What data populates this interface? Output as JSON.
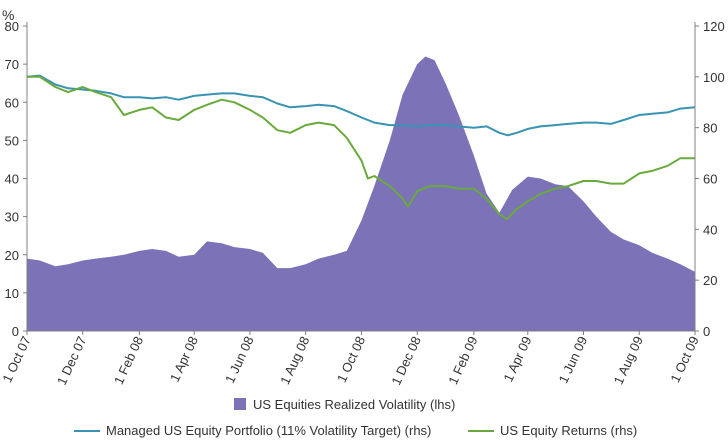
{
  "chart_data": {
    "type": "area",
    "y_left_unit": "%",
    "y_left_lim": [
      0,
      80
    ],
    "y_left_ticks": [
      "0",
      "10",
      "20",
      "30",
      "40",
      "50",
      "60",
      "70",
      "80"
    ],
    "y_right_lim": [
      0,
      120
    ],
    "y_right_ticks": [
      "0",
      "20",
      "40",
      "60",
      "80",
      "100",
      "120"
    ],
    "x_lim": [
      "2007-10-01",
      "2009-10-01"
    ],
    "x_ticks": [
      {
        "date": "2007-10-01",
        "label": "1 Oct 07"
      },
      {
        "date": "2007-12-01",
        "label": "1 Dec 07"
      },
      {
        "date": "2008-02-01",
        "label": "1 Feb 08"
      },
      {
        "date": "2008-04-01",
        "label": "1 Apr 08"
      },
      {
        "date": "2008-06-01",
        "label": "1 Jun 08"
      },
      {
        "date": "2008-08-01",
        "label": "1 Aug 08"
      },
      {
        "date": "2008-10-01",
        "label": "1 Oct 08"
      },
      {
        "date": "2008-12-01",
        "label": "1 Dec 08"
      },
      {
        "date": "2009-02-01",
        "label": "1 Feb 09"
      },
      {
        "date": "2009-04-01",
        "label": "1 Apr 09"
      },
      {
        "date": "2009-06-01",
        "label": "1 Jun 09"
      },
      {
        "date": "2009-08-01",
        "label": "1 Aug 09"
      },
      {
        "date": "2009-10-01",
        "label": "1 Oct 09"
      }
    ],
    "legend_placement": "bottom",
    "series": [
      {
        "name": "US Equities Realized Volatility (lhs)",
        "kind": "area",
        "axis": "left",
        "color": "#7b72b8",
        "points": [
          [
            "2007-10-01",
            19
          ],
          [
            "2007-10-15",
            18.5
          ],
          [
            "2007-11-01",
            17
          ],
          [
            "2007-11-15",
            17.5
          ],
          [
            "2007-12-01",
            18.5
          ],
          [
            "2007-12-15",
            19
          ],
          [
            "2008-01-01",
            19.5
          ],
          [
            "2008-01-15",
            20
          ],
          [
            "2008-02-01",
            21
          ],
          [
            "2008-02-15",
            21.5
          ],
          [
            "2008-03-01",
            21
          ],
          [
            "2008-03-15",
            19.5
          ],
          [
            "2008-04-01",
            20
          ],
          [
            "2008-04-15",
            23.5
          ],
          [
            "2008-05-01",
            23
          ],
          [
            "2008-05-15",
            22
          ],
          [
            "2008-06-01",
            21.5
          ],
          [
            "2008-06-15",
            20.5
          ],
          [
            "2008-07-01",
            16.5
          ],
          [
            "2008-07-15",
            16.5
          ],
          [
            "2008-08-01",
            17.5
          ],
          [
            "2008-08-15",
            19
          ],
          [
            "2008-09-01",
            20
          ],
          [
            "2008-09-15",
            21
          ],
          [
            "2008-10-01",
            29
          ],
          [
            "2008-10-15",
            38
          ],
          [
            "2008-11-01",
            50
          ],
          [
            "2008-11-15",
            62
          ],
          [
            "2008-12-01",
            70
          ],
          [
            "2008-12-10",
            72
          ],
          [
            "2008-12-20",
            71
          ],
          [
            "2009-01-01",
            65
          ],
          [
            "2009-01-15",
            57
          ],
          [
            "2009-02-01",
            46
          ],
          [
            "2009-02-15",
            36
          ],
          [
            "2009-03-01",
            31
          ],
          [
            "2009-03-15",
            37
          ],
          [
            "2009-04-01",
            40.5
          ],
          [
            "2009-04-15",
            40
          ],
          [
            "2009-05-01",
            38.5
          ],
          [
            "2009-05-15",
            38
          ],
          [
            "2009-06-01",
            34
          ],
          [
            "2009-06-15",
            30
          ],
          [
            "2009-07-01",
            26
          ],
          [
            "2009-07-15",
            24
          ],
          [
            "2009-08-01",
            22.5
          ],
          [
            "2009-08-15",
            20.5
          ],
          [
            "2009-09-01",
            19
          ],
          [
            "2009-09-15",
            17.5
          ],
          [
            "2009-10-01",
            15.5
          ]
        ]
      },
      {
        "name": "Managed US Equity Portfolio (11% Volatility Target) (rhs)",
        "kind": "line",
        "axis": "right",
        "color": "#3a93b3",
        "points": [
          [
            "2007-10-01",
            100
          ],
          [
            "2007-10-15",
            100.5
          ],
          [
            "2007-11-01",
            97
          ],
          [
            "2007-11-15",
            95.5
          ],
          [
            "2007-12-01",
            95
          ],
          [
            "2007-12-15",
            94.5
          ],
          [
            "2008-01-01",
            93.5
          ],
          [
            "2008-01-15",
            92
          ],
          [
            "2008-02-01",
            92
          ],
          [
            "2008-02-15",
            91.5
          ],
          [
            "2008-03-01",
            92
          ],
          [
            "2008-03-15",
            91
          ],
          [
            "2008-04-01",
            92.5
          ],
          [
            "2008-04-15",
            93
          ],
          [
            "2008-05-01",
            93.5
          ],
          [
            "2008-05-15",
            93.5
          ],
          [
            "2008-06-01",
            92.5
          ],
          [
            "2008-06-15",
            92
          ],
          [
            "2008-07-01",
            89.5
          ],
          [
            "2008-07-15",
            88
          ],
          [
            "2008-08-01",
            88.5
          ],
          [
            "2008-08-15",
            89
          ],
          [
            "2008-09-01",
            88.5
          ],
          [
            "2008-09-15",
            86.5
          ],
          [
            "2008-10-01",
            84
          ],
          [
            "2008-10-15",
            82
          ],
          [
            "2008-11-01",
            81
          ],
          [
            "2008-11-15",
            81
          ],
          [
            "2008-12-01",
            80.5
          ],
          [
            "2008-12-15",
            81
          ],
          [
            "2009-01-01",
            81
          ],
          [
            "2009-01-15",
            80.5
          ],
          [
            "2009-02-01",
            80
          ],
          [
            "2009-02-15",
            80.5
          ],
          [
            "2009-03-01",
            78
          ],
          [
            "2009-03-10",
            77
          ],
          [
            "2009-03-20",
            78
          ],
          [
            "2009-04-01",
            79.5
          ],
          [
            "2009-04-15",
            80.5
          ],
          [
            "2009-05-01",
            81
          ],
          [
            "2009-05-15",
            81.5
          ],
          [
            "2009-06-01",
            82
          ],
          [
            "2009-06-15",
            82
          ],
          [
            "2009-07-01",
            81.5
          ],
          [
            "2009-07-15",
            83
          ],
          [
            "2009-08-01",
            85
          ],
          [
            "2009-08-15",
            85.5
          ],
          [
            "2009-09-01",
            86
          ],
          [
            "2009-09-15",
            87.5
          ],
          [
            "2009-10-01",
            88
          ]
        ]
      },
      {
        "name": "US Equity Returns (rhs)",
        "kind": "line",
        "axis": "right",
        "color": "#6aaa3c",
        "points": [
          [
            "2007-10-01",
            100
          ],
          [
            "2007-10-15",
            100
          ],
          [
            "2007-11-01",
            96
          ],
          [
            "2007-11-15",
            94
          ],
          [
            "2007-12-01",
            96
          ],
          [
            "2007-12-15",
            94
          ],
          [
            "2008-01-01",
            92
          ],
          [
            "2008-01-15",
            85
          ],
          [
            "2008-02-01",
            87
          ],
          [
            "2008-02-15",
            88
          ],
          [
            "2008-03-01",
            84
          ],
          [
            "2008-03-15",
            83
          ],
          [
            "2008-04-01",
            87
          ],
          [
            "2008-04-15",
            89
          ],
          [
            "2008-05-01",
            91
          ],
          [
            "2008-05-15",
            90
          ],
          [
            "2008-06-01",
            87
          ],
          [
            "2008-06-15",
            84
          ],
          [
            "2008-07-01",
            79
          ],
          [
            "2008-07-15",
            78
          ],
          [
            "2008-08-01",
            81
          ],
          [
            "2008-08-15",
            82
          ],
          [
            "2008-09-01",
            81
          ],
          [
            "2008-09-15",
            76
          ],
          [
            "2008-10-01",
            67
          ],
          [
            "2008-10-08",
            60
          ],
          [
            "2008-10-15",
            61
          ],
          [
            "2008-11-01",
            57
          ],
          [
            "2008-11-15",
            52
          ],
          [
            "2008-11-21",
            49
          ],
          [
            "2008-12-01",
            55
          ],
          [
            "2008-12-15",
            57
          ],
          [
            "2009-01-01",
            57
          ],
          [
            "2009-01-15",
            56
          ],
          [
            "2009-02-01",
            56
          ],
          [
            "2009-02-15",
            52
          ],
          [
            "2009-03-01",
            46
          ],
          [
            "2009-03-09",
            44
          ],
          [
            "2009-03-20",
            48
          ],
          [
            "2009-04-01",
            51
          ],
          [
            "2009-04-15",
            54
          ],
          [
            "2009-05-01",
            56
          ],
          [
            "2009-05-15",
            57
          ],
          [
            "2009-06-01",
            59
          ],
          [
            "2009-06-15",
            59
          ],
          [
            "2009-07-01",
            58
          ],
          [
            "2009-07-15",
            58
          ],
          [
            "2009-08-01",
            62
          ],
          [
            "2009-08-15",
            63
          ],
          [
            "2009-09-01",
            65
          ],
          [
            "2009-09-15",
            68
          ],
          [
            "2009-10-01",
            68
          ]
        ]
      }
    ]
  }
}
